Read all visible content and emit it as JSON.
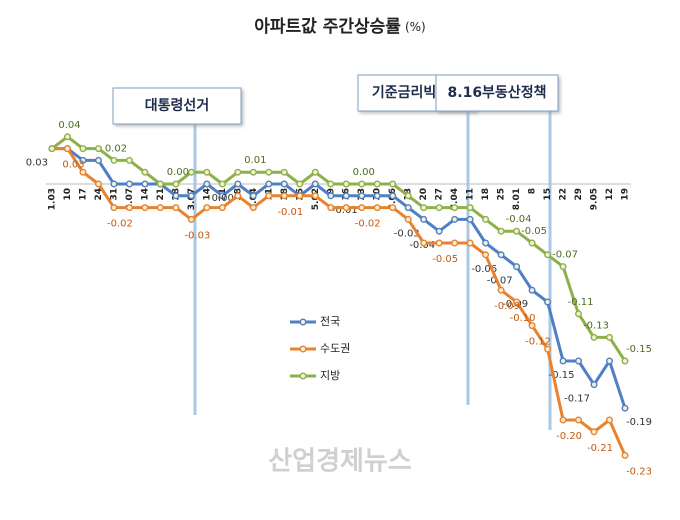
{
  "chart_data": {
    "type": "line",
    "title": "아파트값 주간상승률",
    "title_unit": "(%)",
    "watermark": "산업경제뉴스",
    "annotations": [
      "대통령선거",
      "기준금리빅스텝",
      "8.16부동산정책"
    ],
    "categories": [
      "1.03",
      "10",
      "17",
      "24",
      "31",
      "2.07",
      "14",
      "21",
      "28",
      "3.07",
      "14",
      "21",
      "28",
      "4.04",
      "11",
      "18",
      "25",
      "5.02",
      "9",
      "16",
      "23",
      "30",
      "6.06",
      "13",
      "20",
      "27",
      "7.04",
      "11",
      "18",
      "25",
      "8.01",
      "8",
      "15",
      "22",
      "29",
      "9.05",
      "12",
      "19"
    ],
    "ylim": [
      -0.25,
      0.05
    ],
    "series": [
      {
        "name": "전국",
        "color": "#4f7fc4",
        "label_color": "#333333",
        "values": [
          0.03,
          0.03,
          0.02,
          0.02,
          0.0,
          0.0,
          0.0,
          0.0,
          -0.01,
          -0.01,
          0.0,
          -0.01,
          0.0,
          -0.01,
          0.0,
          0.0,
          -0.01,
          0.0,
          -0.01,
          -0.01,
          -0.01,
          -0.01,
          -0.01,
          -0.02,
          -0.03,
          -0.04,
          -0.03,
          -0.03,
          -0.05,
          -0.06,
          -0.07,
          -0.09,
          -0.1,
          -0.15,
          -0.15,
          -0.17,
          -0.15,
          -0.19
        ],
        "value_labels": [
          "0.03",
          null,
          null,
          null,
          null,
          null,
          null,
          null,
          null,
          null,
          null,
          null,
          "0.00",
          null,
          null,
          null,
          null,
          null,
          null,
          null,
          "-0.01",
          null,
          null,
          null,
          "-0.03",
          "-0.04",
          null,
          null,
          null,
          "-0.06",
          "-0.07",
          "-0.09",
          null,
          null,
          "-0.15",
          "-0.17",
          null,
          "-0.19"
        ]
      },
      {
        "name": "수도권",
        "color": "#e8822e",
        "label_color": "#c55a11",
        "values": [
          0.03,
          0.03,
          0.01,
          0.0,
          -0.02,
          -0.02,
          -0.02,
          -0.02,
          -0.02,
          -0.03,
          -0.02,
          -0.02,
          -0.01,
          -0.02,
          -0.01,
          -0.01,
          -0.01,
          -0.01,
          -0.02,
          -0.02,
          -0.02,
          -0.02,
          -0.02,
          -0.03,
          -0.05,
          -0.05,
          -0.05,
          -0.05,
          -0.06,
          -0.09,
          -0.1,
          -0.12,
          -0.14,
          -0.2,
          -0.2,
          -0.21,
          -0.2,
          -0.23
        ],
        "value_labels": [
          null,
          "0.03",
          null,
          null,
          "-0.02",
          null,
          null,
          null,
          null,
          "-0.03",
          null,
          null,
          null,
          null,
          null,
          "-0.01",
          null,
          null,
          null,
          null,
          "-0.02",
          null,
          null,
          null,
          null,
          "-0.05",
          null,
          null,
          null,
          "-0.09",
          "-0.10",
          "-0.12",
          null,
          "-0.20",
          null,
          "-0.21",
          null,
          "-0.23"
        ]
      },
      {
        "name": "지방",
        "color": "#8db14a",
        "label_color": "#4f6b22",
        "values": [
          0.03,
          0.04,
          0.03,
          0.03,
          0.02,
          0.02,
          0.01,
          0.0,
          0.0,
          0.01,
          0.01,
          0.0,
          0.01,
          0.01,
          0.01,
          0.01,
          0.0,
          0.01,
          0.0,
          0.0,
          0.0,
          0.0,
          0.0,
          -0.01,
          -0.02,
          -0.02,
          -0.02,
          -0.02,
          -0.03,
          -0.04,
          -0.04,
          -0.05,
          -0.06,
          -0.07,
          -0.11,
          -0.13,
          -0.13,
          -0.15
        ],
        "value_labels": [
          null,
          "0.04",
          null,
          null,
          "0.02",
          null,
          null,
          null,
          "0.00",
          null,
          null,
          null,
          null,
          "0.01",
          null,
          null,
          null,
          null,
          null,
          null,
          "0.00",
          null,
          null,
          null,
          null,
          null,
          null,
          null,
          null,
          null,
          "-0.04",
          "-0.05",
          null,
          "-0.07",
          "-0.11",
          "-0.13",
          null,
          "-0.15"
        ]
      }
    ]
  }
}
